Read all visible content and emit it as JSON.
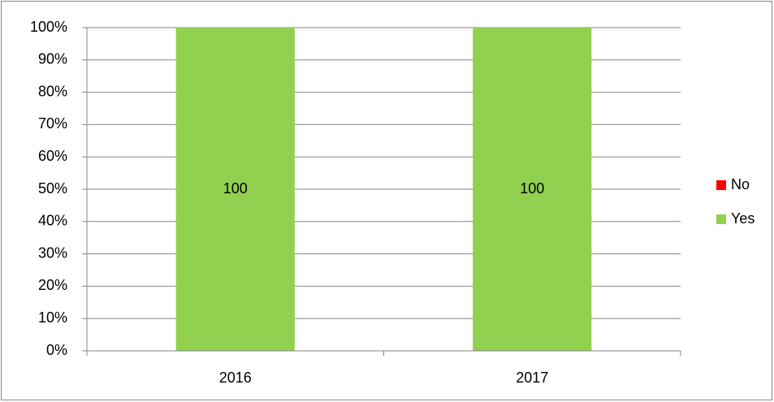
{
  "chart_data": {
    "type": "stacked_bar",
    "categories": [
      "2016",
      "2017"
    ],
    "series": [
      {
        "name": "Yes",
        "color": "#92d050",
        "values": [
          100,
          100
        ]
      },
      {
        "name": "No",
        "color": "#ff0000",
        "values": [
          0,
          0
        ]
      }
    ],
    "ylim": [
      0,
      100
    ],
    "yticks": [
      {
        "value": 0,
        "label": "0%"
      },
      {
        "value": 10,
        "label": "10%"
      },
      {
        "value": 20,
        "label": "20%"
      },
      {
        "value": 30,
        "label": "30%"
      },
      {
        "value": 40,
        "label": "40%"
      },
      {
        "value": 50,
        "label": "50%"
      },
      {
        "value": 60,
        "label": "60%"
      },
      {
        "value": 70,
        "label": "70%"
      },
      {
        "value": 80,
        "label": "80%"
      },
      {
        "value": 90,
        "label": "90%"
      },
      {
        "value": 100,
        "label": "100%"
      }
    ],
    "grid": true,
    "legend": "right"
  }
}
